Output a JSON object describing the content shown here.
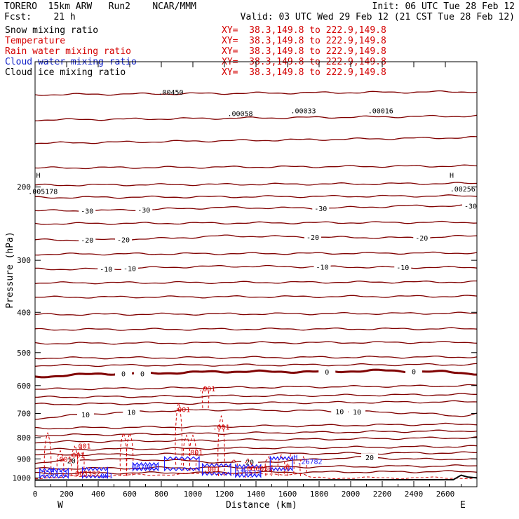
{
  "header": {
    "model": "TORERO  15km ARW   Run2    NCAR/MMM",
    "init": "Init: 06 UTC Tue 28 Feb 12",
    "fcst": "Fcst:    21 h",
    "valid": "Valid: 03 UTC Wed 29 Feb 12 (21 CST Tue 28 Feb 12)"
  },
  "fields": [
    {
      "name": "Snow mixing ratio",
      "xy": "XY=  38.3,149.8 to 222.9,149.8",
      "color": "#000000"
    },
    {
      "name": "Temperature",
      "xy": "XY=  38.3,149.8 to 222.9,149.8",
      "color": "#d40000"
    },
    {
      "name": "Rain water mixing ratio",
      "xy": "XY=  38.3,149.8 to 222.9,149.8",
      "color": "#d40000"
    },
    {
      "name": "Cloud water mixing ratio",
      "xy": "XY=  38.3,149.8 to 222.9,149.8",
      "color": "#1020c8"
    },
    {
      "name": "Cloud ice mixing ratio",
      "xy": "XY=  38.3,149.8 to 222.9,149.8",
      "color": "#000000"
    }
  ],
  "colors": {
    "temperature": "#800000",
    "rain": "#d40000",
    "cloud_water": "#1a1aff",
    "terrain": "#000000"
  },
  "chart_data": {
    "type": "line",
    "xlabel": "Distance (km)",
    "ylabel": "Pressure (hPa)",
    "xlim": [
      0,
      2800
    ],
    "ylim": [
      1050,
      100
    ],
    "y_scale": "log",
    "x_ticks": [
      0,
      200,
      400,
      600,
      800,
      1000,
      1200,
      1400,
      1600,
      1800,
      2000,
      2200,
      2400,
      2600
    ],
    "y_ticks": [
      200,
      300,
      400,
      500,
      600,
      700,
      800,
      900,
      1000
    ],
    "x_end_labels": {
      "left": "W",
      "right": "E"
    },
    "grid": false,
    "isotherms": [
      {
        "value": -30,
        "label": "-30",
        "points": [
          [
            0,
            228
          ],
          [
            400,
            228
          ],
          [
            800,
            226
          ],
          [
            1200,
            224
          ],
          [
            1800,
            225
          ],
          [
            2400,
            222
          ],
          [
            2800,
            222
          ]
        ],
        "labels_at": [
          330,
          690,
          1810,
          2760
        ]
      },
      {
        "value": -20,
        "label": "-20",
        "points": [
          [
            0,
            268
          ],
          [
            400,
            268
          ],
          [
            800,
            266
          ],
          [
            1200,
            262
          ],
          [
            1800,
            264
          ],
          [
            2400,
            265
          ],
          [
            2800,
            262
          ]
        ],
        "labels_at": [
          330,
          560,
          1760,
          2450
        ]
      },
      {
        "value": -10,
        "label": "-10",
        "points": [
          [
            0,
            315
          ],
          [
            400,
            315
          ],
          [
            800,
            312
          ],
          [
            1200,
            310
          ],
          [
            1800,
            311
          ],
          [
            2400,
            312
          ],
          [
            2800,
            312
          ]
        ],
        "labels_at": [
          450,
          600,
          1820,
          2330
        ]
      },
      {
        "value": 0,
        "label": "0",
        "bold": true,
        "points": [
          [
            0,
            572
          ],
          [
            400,
            562
          ],
          [
            800,
            560
          ],
          [
            1200,
            555
          ],
          [
            1800,
            556
          ],
          [
            2200,
            552
          ],
          [
            2400,
            555
          ],
          [
            2600,
            556
          ],
          [
            2800,
            562
          ]
        ],
        "labels_at": [
          560,
          680,
          1850,
          2400
        ]
      },
      {
        "value": 10,
        "label": "10",
        "points": [
          [
            0,
            720
          ],
          [
            400,
            700
          ],
          [
            800,
            690
          ],
          [
            1200,
            686
          ],
          [
            1800,
            690
          ],
          [
            2400,
            698
          ],
          [
            2700,
            710
          ],
          [
            2800,
            700
          ]
        ],
        "labels_at": [
          320,
          610,
          1930,
          2040
        ]
      },
      {
        "value": 20,
        "label": "20",
        "points": [
          [
            0,
            920
          ],
          [
            400,
            900
          ],
          [
            800,
            905
          ],
          [
            1200,
            918
          ],
          [
            1600,
            912
          ],
          [
            1800,
            900
          ],
          [
            2100,
            892
          ],
          [
            2400,
            902
          ],
          [
            2700,
            900
          ],
          [
            2800,
            905
          ]
        ],
        "labels_at": [
          230,
          1360,
          2120
        ]
      }
    ],
    "isotherm_other": [
      [
        [
          0,
          120
        ],
        [
          2800,
          118
        ]
      ],
      [
        [
          0,
          138
        ],
        [
          2800,
          135
        ]
      ],
      [
        [
          0,
          157
        ],
        [
          2800,
          152
        ]
      ],
      [
        [
          0,
          180
        ],
        [
          2800,
          178
        ]
      ],
      [
        [
          0,
          198
        ],
        [
          2800,
          196
        ]
      ],
      [
        [
          0,
          212
        ],
        [
          2800,
          210
        ]
      ],
      [
        [
          0,
          245
        ],
        [
          2800,
          243
        ]
      ],
      [
        [
          0,
          290
        ],
        [
          2800,
          288
        ]
      ],
      [
        [
          0,
          340
        ],
        [
          2800,
          338
        ]
      ],
      [
        [
          0,
          368
        ],
        [
          2800,
          366
        ]
      ],
      [
        [
          0,
          405
        ],
        [
          2800,
          402
        ]
      ],
      [
        [
          0,
          440
        ],
        [
          2800,
          438
        ]
      ],
      [
        [
          0,
          475
        ],
        [
          2800,
          472
        ]
      ],
      [
        [
          0,
          515
        ],
        [
          2800,
          512
        ]
      ],
      [
        [
          0,
          537
        ],
        [
          2800,
          534
        ]
      ],
      [
        [
          0,
          612
        ],
        [
          2800,
          600
        ]
      ],
      [
        [
          0,
          640
        ],
        [
          2800,
          630
        ]
      ],
      [
        [
          0,
          665
        ],
        [
          2800,
          656
        ]
      ],
      [
        [
          0,
          760
        ],
        [
          2800,
          742
        ]
      ],
      [
        [
          0,
          790
        ],
        [
          2800,
          770
        ]
      ],
      [
        [
          0,
          820
        ],
        [
          2800,
          800
        ]
      ],
      [
        [
          0,
          855
        ],
        [
          2800,
          840
        ]
      ],
      [
        [
          0,
          880
        ],
        [
          2800,
          870
        ]
      ],
      [
        [
          0,
          950
        ],
        [
          2800,
          935
        ]
      ],
      [
        [
          0,
          975
        ],
        [
          2800,
          965
        ]
      ]
    ],
    "rain_labels": [
      {
        "x": 1090,
        "p": 620,
        "text": ".001"
      },
      {
        "x": 930,
        "p": 695,
        "text": ".001"
      },
      {
        "x": 1180,
        "p": 765,
        "text": ".001"
      },
      {
        "x": 300,
        "p": 850,
        "text": ".001"
      },
      {
        "x": 1010,
        "p": 880,
        "text": ".001"
      },
      {
        "x": 260,
        "p": 893,
        "text": ".001"
      },
      {
        "x": 180,
        "p": 915,
        "text": ".001"
      },
      {
        "x": 1120,
        "p": 966,
        "text": ".001"
      },
      {
        "x": 1410,
        "p": 962,
        "text": ".056056"
      },
      {
        "x": 320,
        "p": 988,
        "text": ".063392"
      },
      {
        "x": 1600,
        "p": 955,
        "text": "H"
      }
    ],
    "cloud_labels": [
      {
        "x": 110,
        "p": 970,
        "text": "H"
      },
      {
        "x": 110,
        "p": 990,
        "text": ".225432"
      },
      {
        "x": 440,
        "p": 1002,
        "text": ".001"
      },
      {
        "x": 680,
        "p": 954,
        "text": ".067063"
      },
      {
        "x": 1650,
        "p": 905,
        "text": "H"
      },
      {
        "x": 1740,
        "p": 925,
        "text": ".26782"
      },
      {
        "x": 1320,
        "p": 968,
        "text": "H"
      },
      {
        "x": 1340,
        "p": 985,
        "text": ".170512"
      }
    ],
    "top_labels": [
      {
        "x": 860,
        "p": 120,
        "text": ".00450"
      },
      {
        "x": 1300,
        "p": 135,
        "text": ".00058"
      },
      {
        "x": 1700,
        "p": 133,
        "text": ".00033"
      },
      {
        "x": 2190,
        "p": 133,
        "text": ".00016"
      },
      {
        "x": 50,
        "p": 208,
        "text": ".005178"
      },
      {
        "x": 2710,
        "p": 205,
        "text": ".00256"
      },
      {
        "x": 20,
        "p": 190,
        "text": "H"
      },
      {
        "x": 2640,
        "p": 190,
        "text": "H"
      }
    ]
  }
}
